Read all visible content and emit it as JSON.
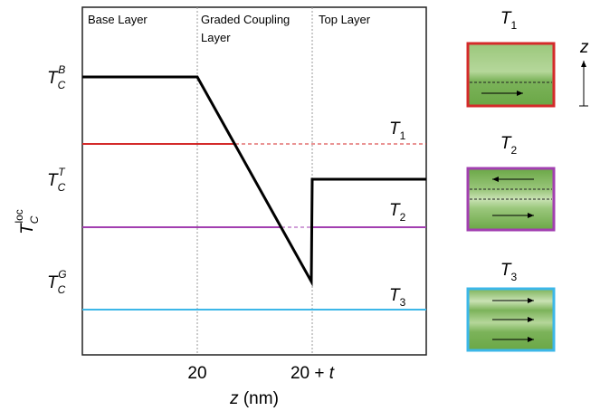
{
  "plot": {
    "regions": [
      "Base Layer",
      "Graded Coupling",
      "Layer",
      "Top Layer"
    ],
    "y_ticks": [
      {
        "main": "T",
        "sub": "C",
        "sup": "B"
      },
      {
        "main": "T",
        "sub": "C",
        "sup": "T"
      },
      {
        "main": "T",
        "sub": "C",
        "sup": "G"
      }
    ],
    "y_label": {
      "main": "T",
      "sub": "C",
      "sup": "loc"
    },
    "x_ticks": [
      "20",
      {
        "text": "20 + ",
        "var": "t"
      }
    ],
    "x_label": {
      "var": "z",
      "unit": " (nm)"
    },
    "curve_labels": [
      {
        "main": "T",
        "sub": "1"
      },
      {
        "main": "T",
        "sub": "2"
      },
      {
        "main": "T",
        "sub": "3"
      }
    ]
  },
  "panels": {
    "titles": [
      {
        "main": "T",
        "sub": "1"
      },
      {
        "main": "T",
        "sub": "2"
      },
      {
        "main": "T",
        "sub": "3"
      }
    ],
    "axis": "z"
  }
}
